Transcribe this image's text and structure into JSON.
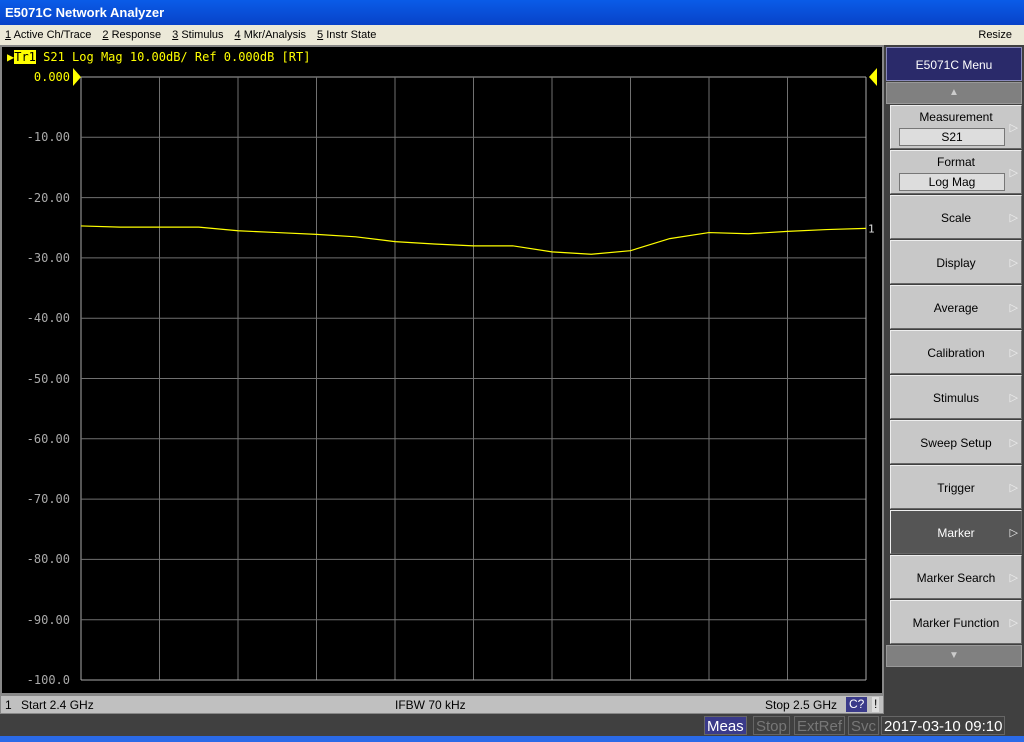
{
  "window": {
    "title": "E5071C Network Analyzer"
  },
  "menu": [
    {
      "key": "1",
      "label": " Active Ch/Trace"
    },
    {
      "key": "2",
      "label": " Response"
    },
    {
      "key": "3",
      "label": " Stimulus"
    },
    {
      "key": "4",
      "label": " Mkr/Analysis"
    },
    {
      "key": "5",
      "label": " Instr State"
    }
  ],
  "menu_resize": "Resize",
  "trace_header": {
    "trace": "Tr1",
    "text": " S21 Log Mag 10.00dB/ Ref 0.000dB [RT]"
  },
  "trace_marker_label": "1",
  "status": {
    "channel": "1",
    "start": "Start 2.4 GHz",
    "ifbw": "IFBW 70 kHz",
    "stop": "Stop 2.5 GHz",
    "cal": "C?",
    "warn": "!"
  },
  "softkey_menu": {
    "title": "E5071C Menu",
    "buttons": [
      {
        "label": "Measurement",
        "value": "S21"
      },
      {
        "label": "Format",
        "value": "Log Mag"
      },
      {
        "label": "Scale"
      },
      {
        "label": "Display"
      },
      {
        "label": "Average"
      },
      {
        "label": "Calibration"
      },
      {
        "label": "Stimulus"
      },
      {
        "label": "Sweep Setup"
      },
      {
        "label": "Trigger"
      },
      {
        "label": "Marker",
        "selected": true
      },
      {
        "label": "Marker Search"
      },
      {
        "label": "Marker Function"
      }
    ]
  },
  "bottom_status": {
    "meas": "Meas",
    "stop": "Stop",
    "extref": "ExtRef",
    "svc": "Svc",
    "datetime": "2017-03-10 09:10"
  },
  "colors": {
    "trace": "#ffff00",
    "grid": "#707070",
    "meas_active": "#3a3a8a"
  },
  "chart_data": {
    "type": "line",
    "ylim": [
      -100,
      0
    ],
    "xlim": [
      2.4,
      2.5
    ],
    "x_unit": "GHz",
    "y_unit": "dB",
    "ytick_labels": [
      "0.000",
      "-10.00",
      "-20.00",
      "-30.00",
      "-40.00",
      "-50.00",
      "-60.00",
      "-70.00",
      "-80.00",
      "-90.00",
      "-100.0"
    ],
    "grid": true,
    "series": [
      {
        "x": [
          2.4,
          2.405,
          2.41,
          2.415,
          2.42,
          2.425,
          2.43,
          2.435,
          2.44,
          2.445,
          2.45,
          2.455,
          2.46,
          2.465,
          2.47,
          2.475,
          2.48,
          2.485,
          2.49,
          2.495,
          2.5
        ],
        "y": [
          -24.7,
          -24.9,
          -24.9,
          -24.9,
          -25.5,
          -25.8,
          -26.1,
          -26.5,
          -27.3,
          -27.7,
          -28.0,
          -28.0,
          -29.0,
          -29.4,
          -28.8,
          -26.8,
          -25.8,
          -26.0,
          -25.6,
          -25.3,
          -25.1
        ]
      }
    ]
  }
}
